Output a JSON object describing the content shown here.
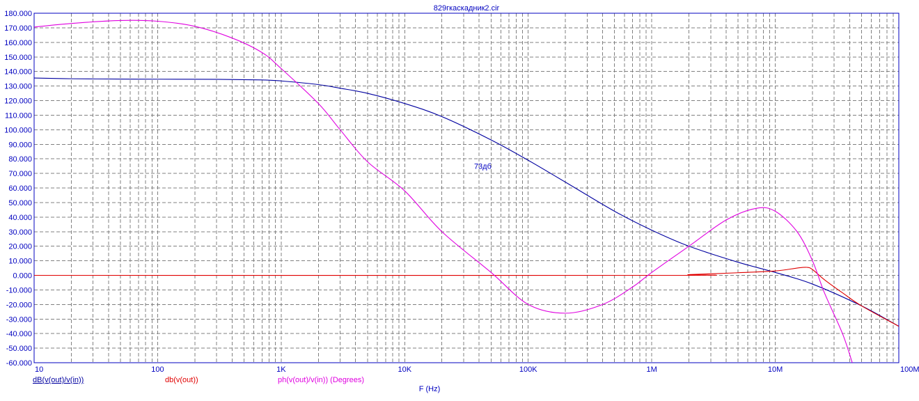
{
  "window": {
    "title": "829гкаскадник2.cir"
  },
  "chart_data": {
    "type": "line",
    "title": "829гкаскадник2.cir",
    "xlabel": "F (Hz)",
    "ylabel": "",
    "x_scale": "log",
    "xlim": [
      10,
      100000000
    ],
    "ylim": [
      -60,
      180
    ],
    "grid": true,
    "x_ticks": [
      {
        "value": 10,
        "label": "10"
      },
      {
        "value": 100,
        "label": "100"
      },
      {
        "value": 1000,
        "label": "1K"
      },
      {
        "value": 10000,
        "label": "10K"
      },
      {
        "value": 100000,
        "label": "100K"
      },
      {
        "value": 1000000,
        "label": "1M"
      },
      {
        "value": 10000000,
        "label": "10M"
      },
      {
        "value": 100000000,
        "label": "100M"
      }
    ],
    "y_ticks": [
      {
        "value": 180,
        "label": "180.000"
      },
      {
        "value": 170,
        "label": "170.000"
      },
      {
        "value": 160,
        "label": "160.000"
      },
      {
        "value": 150,
        "label": "150.000"
      },
      {
        "value": 140,
        "label": "140.000"
      },
      {
        "value": 130,
        "label": "130.000"
      },
      {
        "value": 120,
        "label": "120.000"
      },
      {
        "value": 110,
        "label": "110.000"
      },
      {
        "value": 100,
        "label": "100.000"
      },
      {
        "value": 90,
        "label": "90.000"
      },
      {
        "value": 80,
        "label": "80.000"
      },
      {
        "value": 70,
        "label": "70.000"
      },
      {
        "value": 60,
        "label": "60.000"
      },
      {
        "value": 50,
        "label": "50.000"
      },
      {
        "value": 40,
        "label": "40.000"
      },
      {
        "value": 30,
        "label": "30.000"
      },
      {
        "value": 20,
        "label": "20.000"
      },
      {
        "value": 10,
        "label": "10.000"
      },
      {
        "value": 0,
        "label": "0.000"
      },
      {
        "value": -10,
        "label": "-10.000"
      },
      {
        "value": -20,
        "label": "-20.000"
      },
      {
        "value": -30,
        "label": "-30.000"
      },
      {
        "value": -40,
        "label": "-40.000"
      },
      {
        "value": -50,
        "label": "-50.000"
      },
      {
        "value": -60,
        "label": "-60.000"
      }
    ],
    "annotations": [
      {
        "text": "73дб",
        "x": 30000,
        "y": 75
      }
    ],
    "series": [
      {
        "name": "dB(v(out)/v(in))",
        "color": "#0000a0",
        "points": [
          [
            10,
            135.5
          ],
          [
            20,
            135
          ],
          [
            50,
            134.8
          ],
          [
            100,
            134.7
          ],
          [
            300,
            134.6
          ],
          [
            700,
            134.2
          ],
          [
            1000,
            133.5
          ],
          [
            2000,
            131
          ],
          [
            3000,
            128.5
          ],
          [
            5000,
            125
          ],
          [
            10000,
            118
          ],
          [
            20000,
            109
          ],
          [
            50000,
            93
          ],
          [
            100000,
            79
          ],
          [
            200000,
            64
          ],
          [
            500000,
            44
          ],
          [
            1000000,
            31
          ],
          [
            2000000,
            20
          ],
          [
            5000000,
            9
          ],
          [
            10000000,
            2
          ],
          [
            20000000,
            -6
          ],
          [
            50000000,
            -21
          ],
          [
            100000000,
            -35
          ]
        ]
      },
      {
        "name": "db(v(out))",
        "color": "#e00000",
        "points": [
          [
            10,
            0
          ],
          [
            1250000,
            0
          ],
          [
            2000000,
            0.5
          ],
          [
            5000000,
            1.8
          ],
          [
            10000000,
            3
          ],
          [
            15000000,
            5
          ],
          [
            18000000,
            5.5
          ],
          [
            20000000,
            4
          ],
          [
            25000000,
            -3
          ],
          [
            35000000,
            -12
          ],
          [
            50000000,
            -21
          ],
          [
            100000000,
            -35
          ]
        ]
      },
      {
        "name": "ph(v(out)/v(in)) (Degrees)",
        "color": "#e000e0",
        "points": [
          [
            10,
            170.5
          ],
          [
            20,
            173
          ],
          [
            50,
            175
          ],
          [
            100,
            174.5
          ],
          [
            200,
            171
          ],
          [
            400,
            163
          ],
          [
            700,
            153
          ],
          [
            1000,
            142
          ],
          [
            2000,
            118
          ],
          [
            3000,
            100
          ],
          [
            5000,
            78
          ],
          [
            10000,
            58
          ],
          [
            20000,
            30
          ],
          [
            50000,
            2
          ],
          [
            100000,
            -20
          ],
          [
            200000,
            -26
          ],
          [
            400000,
            -20
          ],
          [
            700000,
            -8
          ],
          [
            1000000,
            2
          ],
          [
            2000000,
            20
          ],
          [
            4000000,
            38
          ],
          [
            7000000,
            46
          ],
          [
            10000000,
            44
          ],
          [
            15000000,
            30
          ],
          [
            20000000,
            10
          ],
          [
            25000000,
            -12
          ],
          [
            35000000,
            -40
          ],
          [
            42000000,
            -60
          ]
        ]
      }
    ],
    "legend": [
      {
        "text": "dB(v(out)/v(in))",
        "color": "#0000a0",
        "underline": true
      },
      {
        "text": "db(v(out))",
        "color": "#e00000",
        "underline": false
      },
      {
        "text": "ph(v(out)/v(in)) (Degrees)",
        "color": "#e000e0",
        "underline": false
      }
    ],
    "axis_color": "#0000c0",
    "grid_color": "#808080"
  }
}
